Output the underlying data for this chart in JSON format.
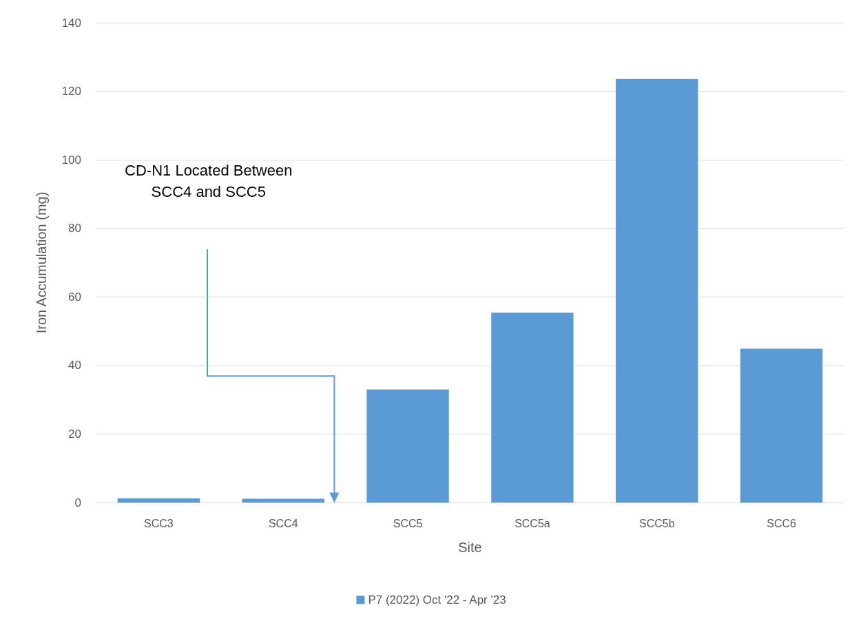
{
  "chart_data": {
    "type": "bar",
    "xlabel": "Site",
    "ylabel": "Iron Accumulation (mg)",
    "categories": [
      "SCC3",
      "SCC4",
      "SCC5",
      "SCC5a",
      "SCC5b",
      "SCC6"
    ],
    "series": [
      {
        "name": "P7 (2022) Oct '22 - Apr '23",
        "color": "#5b9bd5",
        "values": [
          1.2,
          1.1,
          33,
          55.4,
          123.6,
          44.9
        ]
      }
    ],
    "ylim": [
      0,
      140
    ],
    "yticks": [
      0,
      20,
      40,
      60,
      80,
      100,
      120,
      140
    ],
    "grid": "y",
    "legend": "bottom",
    "annotations": [
      "CD-N1 Located Between SCC4 and SCC5"
    ]
  }
}
